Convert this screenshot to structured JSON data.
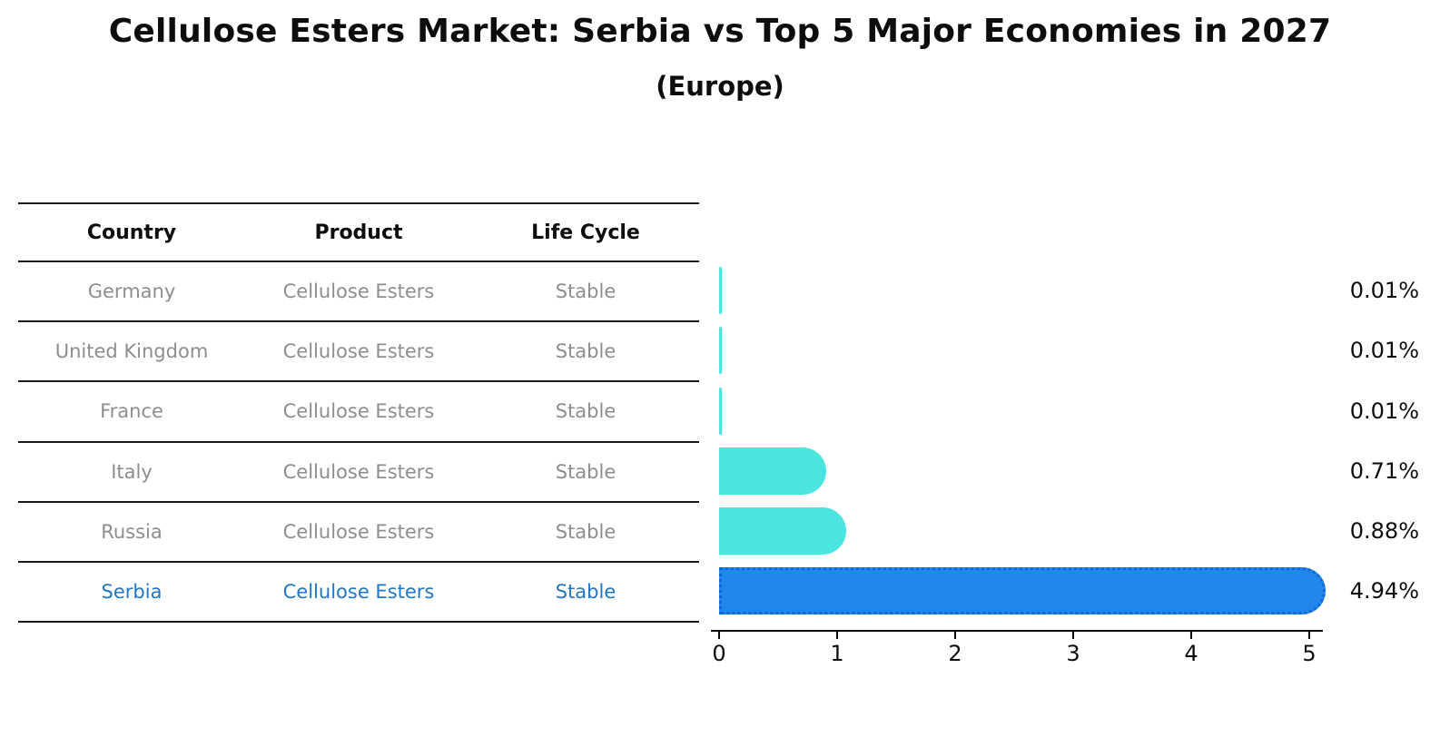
{
  "title": "Cellulose Esters Market: Serbia vs Top 5 Major Economies in 2027",
  "subtitle": "(Europe)",
  "colors": {
    "bar_cyan": "#4AE5E1",
    "bar_blue": "#2287EC",
    "bar_blue_edge": "#0F67D2",
    "highlight_text": "#2177C4",
    "muted_text": "#8E8E8E",
    "text": "#0D0D0D"
  },
  "table": {
    "headers": [
      "Country",
      "Product",
      "Life Cycle"
    ]
  },
  "chart_data": {
    "type": "bar",
    "orientation": "horizontal",
    "title": "Cellulose Esters Market: Serbia vs Top 5 Major Economies in 2027 (Europe)",
    "xlim": [
      0,
      5.2
    ],
    "x_ticks": [
      "0",
      "1",
      "2",
      "3",
      "4",
      "5"
    ],
    "grid": false,
    "legend": "none",
    "rows": [
      {
        "country": "Germany",
        "product": "Cellulose Esters",
        "life_cycle": "Stable",
        "value": 0.01,
        "label": "0.01%",
        "highlight": false
      },
      {
        "country": "United Kingdom",
        "product": "Cellulose Esters",
        "life_cycle": "Stable",
        "value": 0.01,
        "label": "0.01%",
        "highlight": false
      },
      {
        "country": "France",
        "product": "Cellulose Esters",
        "life_cycle": "Stable",
        "value": 0.01,
        "label": "0.01%",
        "highlight": false
      },
      {
        "country": "Italy",
        "product": "Cellulose Esters",
        "life_cycle": "Stable",
        "value": 0.71,
        "label": "0.71%",
        "highlight": false
      },
      {
        "country": "Russia",
        "product": "Cellulose Esters",
        "life_cycle": "Stable",
        "value": 0.88,
        "label": "0.88%",
        "highlight": false
      },
      {
        "country": "Serbia",
        "product": "Cellulose Esters",
        "life_cycle": "Stable",
        "value": 4.94,
        "label": "4.94%",
        "highlight": true
      }
    ]
  }
}
